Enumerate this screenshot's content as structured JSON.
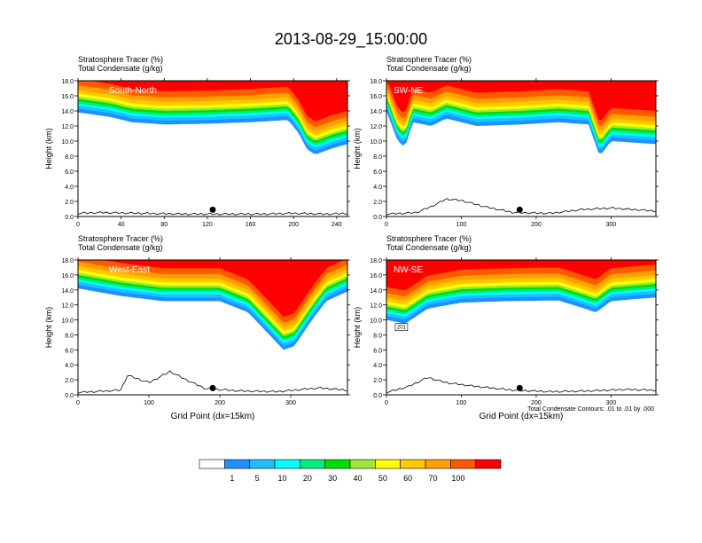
{
  "title": "2013-08-29_15:00:00",
  "colors": {
    "bands": [
      "#ffffff",
      "#1e90ff",
      "#1fbfff",
      "#00ffff",
      "#00ee80",
      "#00e000",
      "#9fe83a",
      "#ffff00",
      "#ffc800",
      "#ffa000",
      "#ff5a00",
      "#ff0000"
    ],
    "topo": "#000000",
    "contour": "#000000"
  },
  "colorbar": {
    "labels": [
      "1",
      "5",
      "10",
      "20",
      "30",
      "40",
      "50",
      "60",
      "70",
      "100"
    ]
  },
  "footnote": "Total Condensate Contours: .01 to .01 by .000",
  "xlabel": "Grid Point (dx=15km)",
  "ylabel": "Height (km)",
  "panel_header": {
    "line1": "Stratosphere Tracer   (%)",
    "line2": "Total Condensate   (g/kg)"
  },
  "chart_data": [
    {
      "type": "heatmap",
      "name": "South-North",
      "xlim": [
        0,
        250
      ],
      "xticks": [
        "0",
        "40",
        "80",
        "120",
        "160",
        "200",
        "240"
      ],
      "xtick_values": [
        0,
        40,
        80,
        120,
        160,
        200,
        240
      ],
      "ylim": [
        0,
        18
      ],
      "yticks": [
        "0.0",
        "2.0",
        "4.0",
        "6.0",
        "8.0",
        "10.0",
        "12.0",
        "14.0",
        "16.0",
        "18.0"
      ],
      "tracer_base_km": [
        [
          0,
          13.8
        ],
        [
          30,
          13.2
        ],
        [
          50,
          12.5
        ],
        [
          80,
          12.2
        ],
        [
          120,
          12.3
        ],
        [
          160,
          12.5
        ],
        [
          195,
          12.8
        ],
        [
          205,
          11
        ],
        [
          212,
          9
        ],
        [
          220,
          8.2
        ],
        [
          235,
          9
        ],
        [
          250,
          9.6
        ]
      ],
      "terrain_km": [
        [
          0,
          0.3
        ],
        [
          20,
          0.4
        ],
        [
          60,
          0.3
        ],
        [
          100,
          0.2
        ],
        [
          130,
          0.2
        ],
        [
          170,
          0.2
        ],
        [
          200,
          0.3
        ],
        [
          230,
          0.2
        ],
        [
          250,
          0.3
        ]
      ],
      "marker_x": 125
    },
    {
      "type": "heatmap",
      "name": "SW-NE",
      "xlim": [
        0,
        360
      ],
      "xticks": [
        "0",
        "100",
        "200",
        "300"
      ],
      "xtick_values": [
        0,
        100,
        200,
        300
      ],
      "ylim": [
        0,
        18
      ],
      "yticks": [
        "0.0",
        "2.0",
        "4.0",
        "6.0",
        "8.0",
        "10.0",
        "12.0",
        "14.0",
        "16.0",
        "18.0"
      ],
      "tracer_base_km": [
        [
          0,
          14
        ],
        [
          15,
          10
        ],
        [
          25,
          9.2
        ],
        [
          35,
          12.5
        ],
        [
          60,
          12
        ],
        [
          80,
          13
        ],
        [
          120,
          12
        ],
        [
          180,
          12.2
        ],
        [
          230,
          12.5
        ],
        [
          270,
          12.2
        ],
        [
          285,
          8
        ],
        [
          300,
          10
        ],
        [
          330,
          9.8
        ],
        [
          360,
          9.6
        ]
      ],
      "terrain_km": [
        [
          0,
          0.2
        ],
        [
          40,
          0.4
        ],
        [
          60,
          1.2
        ],
        [
          80,
          2.2
        ],
        [
          100,
          2
        ],
        [
          130,
          1.2
        ],
        [
          170,
          0.4
        ],
        [
          220,
          0.3
        ],
        [
          260,
          0.8
        ],
        [
          300,
          1
        ],
        [
          360,
          0.6
        ]
      ],
      "marker_x": 178
    },
    {
      "type": "heatmap",
      "name": "West-East",
      "xlim": [
        0,
        380
      ],
      "xticks": [
        "0",
        "100",
        "200",
        "300"
      ],
      "xtick_values": [
        0,
        100,
        200,
        300
      ],
      "ylim": [
        0,
        18
      ],
      "yticks": [
        "0.0",
        "2.0",
        "4.0",
        "6.0",
        "8.0",
        "10.0",
        "12.0",
        "14.0",
        "16.0",
        "18.0"
      ],
      "tracer_base_km": [
        [
          0,
          14.2
        ],
        [
          60,
          13.2
        ],
        [
          120,
          12.5
        ],
        [
          200,
          12.5
        ],
        [
          240,
          11
        ],
        [
          270,
          8
        ],
        [
          290,
          6
        ],
        [
          305,
          6.5
        ],
        [
          330,
          10
        ],
        [
          350,
          12.5
        ],
        [
          380,
          13.8
        ]
      ],
      "terrain_km": [
        [
          0,
          0.2
        ],
        [
          60,
          0.5
        ],
        [
          70,
          2.5
        ],
        [
          100,
          1.5
        ],
        [
          130,
          3
        ],
        [
          150,
          2
        ],
        [
          180,
          0.7
        ],
        [
          230,
          0.4
        ],
        [
          280,
          0.3
        ],
        [
          340,
          0.8
        ],
        [
          380,
          0.5
        ]
      ],
      "marker_x": 190
    },
    {
      "type": "heatmap",
      "name": "NW-SE",
      "xlim": [
        0,
        360
      ],
      "xticks": [
        "0",
        "100",
        "200",
        "300"
      ],
      "xtick_values": [
        0,
        100,
        200,
        300
      ],
      "ylim": [
        0,
        18
      ],
      "yticks": [
        "0.0",
        "2.0",
        "4.0",
        "6.0",
        "8.0",
        "10.0",
        "12.0",
        "14.0",
        "16.0",
        "18.0"
      ],
      "tracer_base_km": [
        [
          0,
          10
        ],
        [
          25,
          9.5
        ],
        [
          55,
          11.5
        ],
        [
          100,
          12.3
        ],
        [
          160,
          12.5
        ],
        [
          230,
          12.6
        ],
        [
          265,
          11.5
        ],
        [
          280,
          11
        ],
        [
          300,
          12.5
        ],
        [
          360,
          13
        ]
      ],
      "terrain_km": [
        [
          0,
          0.2
        ],
        [
          30,
          1
        ],
        [
          55,
          2.2
        ],
        [
          80,
          1.5
        ],
        [
          120,
          1
        ],
        [
          170,
          0.5
        ],
        [
          220,
          0.3
        ],
        [
          270,
          0.4
        ],
        [
          320,
          0.6
        ],
        [
          360,
          0.5
        ]
      ],
      "marker_x": 178,
      "contour_label": "201"
    }
  ]
}
